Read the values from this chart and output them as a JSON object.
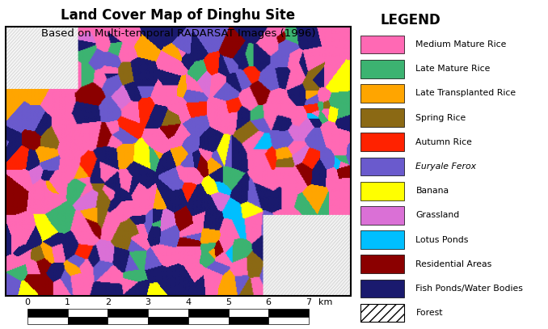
{
  "title_line1": "Land Cover Map of Dinghu Site",
  "title_line2": "Based on Multi-temporal RADARSAT Images (1996)",
  "legend_title": "LEGEND",
  "legend_items": [
    {
      "label": "Medium Mature Rice",
      "color": "#FF69B4"
    },
    {
      "label": "Late Mature Rice",
      "color": "#3CB371"
    },
    {
      "label": "Late Transplanted Rice",
      "color": "#FFA500"
    },
    {
      "label": "Spring Rice",
      "color": "#8B6914"
    },
    {
      "label": "Autumn Rice",
      "color": "#FF2200"
    },
    {
      "label": "Euryale Ferox",
      "color": "#6A5ACD"
    },
    {
      "label": "Banana",
      "color": "#FFFF00"
    },
    {
      "label": "Grassland",
      "color": "#DA70D6"
    },
    {
      "label": "Lotus Ponds",
      "color": "#00BFFF"
    },
    {
      "label": "Residential Areas",
      "color": "#8B0000"
    },
    {
      "label": "Fish Ponds/Water Bodies",
      "color": "#1A1A6E"
    },
    {
      "label": "Forest",
      "color": "hatched"
    }
  ],
  "scale_ticks": [
    0,
    1,
    2,
    3,
    4,
    5,
    6,
    7
  ],
  "scale_unit": "km",
  "map_colors": [
    "#FF69B4",
    "#3CB371",
    "#FFA500",
    "#8B6914",
    "#FF2200",
    "#6A5ACD",
    "#FFFF00",
    "#DA70D6",
    "#00BFFF",
    "#8B0000",
    "#1A1A6E"
  ],
  "map_weights": [
    0.26,
    0.08,
    0.06,
    0.04,
    0.04,
    0.12,
    0.03,
    0.04,
    0.03,
    0.06,
    0.24
  ],
  "bg_color": "#FFFFFF"
}
